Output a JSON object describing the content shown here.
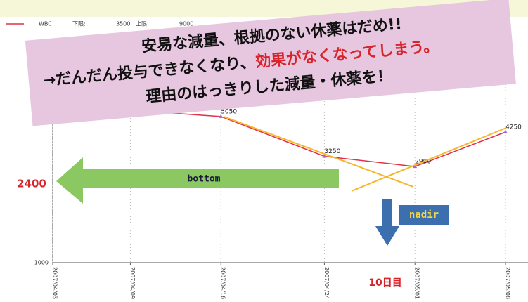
{
  "chart_data": {
    "type": "line",
    "legend": {
      "series_label": "WBC",
      "lower_label": "下限:",
      "lower": 3500,
      "upper_label": "上限:",
      "upper": 9000
    },
    "x": [
      "2007/04/03",
      "2007/04/09",
      "2007/04/16",
      "2007/04/24",
      "2007/05/01",
      "2007/05/08"
    ],
    "xlim": [
      "2007/04/03",
      "2007/05/08"
    ],
    "series": [
      {
        "name": "WBC",
        "color": "#e0304a",
        "values": [
          null,
          5400,
          5050,
          3250,
          2900,
          4250
        ]
      }
    ],
    "ylim": [
      1000,
      10000
    ],
    "yticks": [
      1000
    ],
    "log_scale": true,
    "grid": true,
    "annotations": {
      "banner": [
        "安易な減量、根拠のない休薬はだめ!!",
        "→だんだん投与できなくなり、",
        "効果がなくなってしまう。",
        "理由のはっきりした減量・休薬を！"
      ],
      "bottom_arrow": "bottom",
      "bottom_value": "2400",
      "nadir_arrow": "nadir",
      "day_label": "10日目"
    }
  }
}
